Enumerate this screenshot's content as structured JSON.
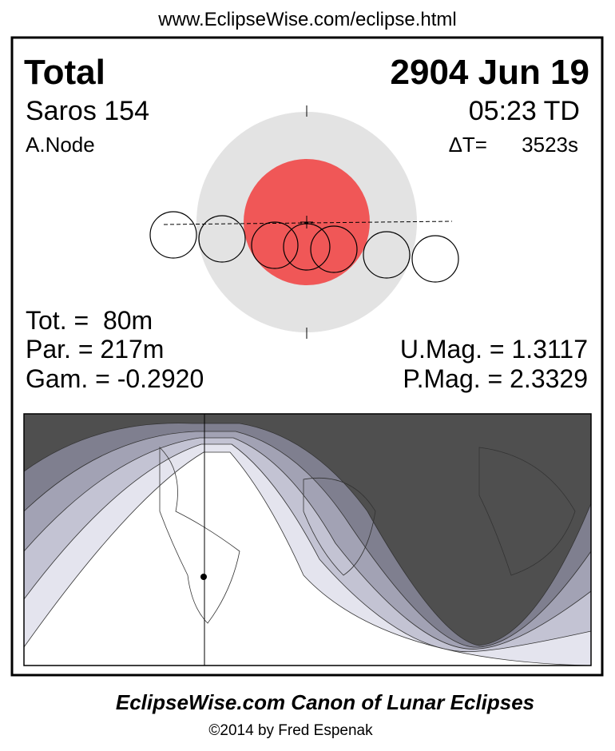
{
  "header": {
    "url": "www.EclipseWise.com/eclipse.html"
  },
  "eclipse": {
    "type": "Total",
    "date": "2904 Jun 19",
    "saros": "Saros 154",
    "time": "05:23 TD",
    "node": "A.Node",
    "delta_t_label": "ΔT=",
    "delta_t": "3523s",
    "tot": "Tot. =  80m",
    "par": "Par. = 217m",
    "gam": "Gam. = -0.2920",
    "umag": "U.Mag. = 1.3117",
    "pmag": "P.Mag. = 2.3329"
  },
  "footer": {
    "title": "EclipseWise.com Canon of Lunar Eclipses",
    "copyright": "©2014 by Fred Espenak"
  }
}
